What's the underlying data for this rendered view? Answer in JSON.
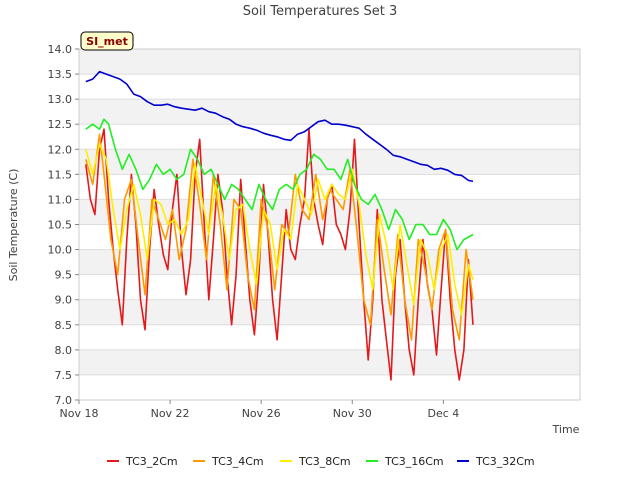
{
  "chart_data": {
    "type": "line",
    "title": "Soil Temperatures Set 3",
    "xlabel": "Time",
    "ylabel": "Soil Temperature (C)",
    "badge": "SI_met",
    "ylim": [
      7.0,
      14.0
    ],
    "xlim": [
      0,
      22
    ],
    "yticks": [
      "7.0",
      "7.5",
      "8.0",
      "8.5",
      "9.0",
      "9.5",
      "10.0",
      "10.5",
      "11.0",
      "11.5",
      "12.0",
      "12.5",
      "13.0",
      "13.5",
      "14.0"
    ],
    "xticks": [
      {
        "x": 0,
        "label": "Nov 18"
      },
      {
        "x": 4,
        "label": "Nov 22"
      },
      {
        "x": 8,
        "label": "Nov 26"
      },
      {
        "x": 12,
        "label": "Nov 30"
      },
      {
        "x": 16,
        "label": "Dec 4"
      }
    ],
    "grid": true,
    "legend_position": "bottom",
    "series": [
      {
        "name": "TC3_2Cm",
        "color": "#e31a1c",
        "x": [
          0.3,
          0.5,
          0.7,
          0.9,
          1.1,
          1.3,
          1.5,
          1.7,
          1.9,
          2.1,
          2.3,
          2.5,
          2.7,
          2.9,
          3.1,
          3.3,
          3.5,
          3.7,
          3.9,
          4.1,
          4.3,
          4.5,
          4.7,
          4.9,
          5.1,
          5.3,
          5.5,
          5.7,
          5.9,
          6.1,
          6.3,
          6.5,
          6.7,
          6.9,
          7.1,
          7.3,
          7.5,
          7.7,
          7.9,
          8.1,
          8.3,
          8.5,
          8.7,
          8.9,
          9.1,
          9.3,
          9.5,
          9.7,
          9.9,
          10.1,
          10.3,
          10.5,
          10.7,
          10.9,
          11.1,
          11.3,
          11.5,
          11.7,
          11.9,
          12.1,
          12.3,
          12.5,
          12.7,
          12.9,
          13.1,
          13.3,
          13.5,
          13.7,
          13.9,
          14.1,
          14.3,
          14.5,
          14.7,
          14.9,
          15.1,
          15.3,
          15.5,
          15.7,
          15.9,
          16.1,
          16.3,
          16.5,
          16.7,
          16.9,
          17.1,
          17.3
        ],
        "y": [
          11.7,
          11.0,
          10.7,
          12.0,
          12.4,
          11.0,
          10.0,
          9.2,
          8.5,
          10.2,
          11.5,
          10.5,
          9.0,
          8.4,
          10.0,
          11.2,
          10.5,
          9.9,
          9.6,
          10.8,
          11.5,
          10.0,
          9.1,
          9.8,
          11.5,
          12.2,
          10.5,
          9.0,
          10.2,
          11.5,
          10.8,
          9.5,
          8.5,
          9.5,
          11.4,
          10.2,
          9.0,
          8.3,
          9.5,
          11.3,
          10.3,
          9.0,
          8.2,
          9.5,
          10.8,
          10.0,
          9.8,
          10.5,
          11.0,
          12.4,
          11.0,
          10.5,
          10.1,
          11.0,
          11.3,
          10.5,
          10.3,
          10.0,
          10.8,
          12.2,
          10.5,
          9.0,
          7.8,
          9.0,
          10.8,
          9.0,
          8.2,
          7.4,
          9.5,
          10.2,
          9.0,
          8.0,
          7.5,
          9.0,
          10.2,
          9.3,
          8.8,
          7.9,
          9.2,
          10.4,
          9.0,
          8.0,
          7.4,
          8.0,
          9.8,
          8.5
        ]
      },
      {
        "name": "TC3_4Cm",
        "color": "#ff9900",
        "x": [
          0.3,
          0.6,
          0.9,
          1.1,
          1.4,
          1.7,
          2.0,
          2.3,
          2.6,
          2.9,
          3.2,
          3.5,
          3.8,
          4.1,
          4.4,
          4.7,
          5.0,
          5.3,
          5.6,
          5.9,
          6.2,
          6.5,
          6.8,
          7.1,
          7.4,
          7.7,
          8.0,
          8.3,
          8.6,
          8.9,
          9.2,
          9.5,
          9.8,
          10.1,
          10.4,
          10.7,
          11.0,
          11.3,
          11.6,
          11.9,
          12.2,
          12.5,
          12.8,
          13.1,
          13.4,
          13.7,
          14.0,
          14.3,
          14.6,
          14.9,
          15.2,
          15.5,
          15.8,
          16.1,
          16.4,
          16.7,
          17.0,
          17.3
        ],
        "y": [
          11.8,
          11.3,
          12.3,
          11.5,
          10.2,
          9.5,
          11.0,
          11.4,
          10.2,
          9.1,
          11.0,
          10.6,
          10.2,
          10.8,
          9.8,
          10.4,
          11.8,
          10.9,
          9.8,
          11.5,
          10.5,
          9.2,
          11.0,
          10.8,
          9.5,
          8.8,
          11.0,
          10.4,
          9.2,
          10.5,
          10.3,
          11.5,
          10.8,
          10.6,
          11.5,
          10.6,
          11.2,
          11.0,
          10.8,
          11.6,
          10.4,
          9.0,
          8.5,
          10.6,
          9.6,
          8.7,
          10.3,
          9.0,
          8.2,
          10.2,
          9.6,
          8.8,
          10.0,
          10.4,
          8.8,
          8.2,
          10.0,
          9.0
        ]
      },
      {
        "name": "TC3_8Cm",
        "color": "#ffee00",
        "x": [
          0.3,
          0.6,
          0.9,
          1.2,
          1.5,
          1.8,
          2.1,
          2.4,
          2.7,
          3.0,
          3.3,
          3.6,
          3.9,
          4.2,
          4.5,
          4.8,
          5.1,
          5.4,
          5.7,
          6.0,
          6.3,
          6.6,
          6.9,
          7.2,
          7.5,
          7.8,
          8.1,
          8.4,
          8.7,
          9.0,
          9.3,
          9.6,
          9.9,
          10.2,
          10.5,
          10.8,
          11.1,
          11.4,
          11.7,
          12.0,
          12.3,
          12.6,
          12.9,
          13.2,
          13.5,
          13.8,
          14.1,
          14.4,
          14.7,
          15.0,
          15.3,
          15.6,
          15.9,
          16.2,
          16.5,
          16.8,
          17.1,
          17.3
        ],
        "y": [
          12.0,
          11.5,
          12.1,
          11.8,
          10.8,
          10.0,
          10.8,
          11.3,
          10.7,
          9.8,
          11.0,
          10.9,
          10.5,
          10.6,
          10.3,
          10.6,
          11.7,
          11.0,
          10.3,
          11.3,
          10.7,
          9.8,
          10.8,
          10.9,
          10.0,
          9.3,
          10.8,
          10.5,
          9.6,
          10.4,
          10.2,
          11.3,
          11.0,
          10.7,
          11.4,
          11.0,
          11.3,
          11.1,
          11.0,
          11.6,
          10.9,
          9.9,
          9.2,
          10.7,
          10.1,
          9.2,
          10.5,
          9.7,
          8.9,
          10.2,
          9.9,
          9.2,
          10.0,
          10.3,
          9.3,
          8.7,
          9.7,
          9.4
        ]
      },
      {
        "name": "TC3_16Cm",
        "color": "#22ee22",
        "x": [
          0.3,
          0.6,
          0.9,
          1.1,
          1.3,
          1.6,
          1.9,
          2.2,
          2.5,
          2.8,
          3.1,
          3.4,
          3.7,
          4.0,
          4.3,
          4.6,
          4.9,
          5.2,
          5.5,
          5.8,
          6.1,
          6.4,
          6.7,
          7.0,
          7.3,
          7.6,
          7.9,
          8.2,
          8.5,
          8.8,
          9.1,
          9.4,
          9.7,
          10.0,
          10.3,
          10.6,
          10.9,
          11.2,
          11.5,
          11.8,
          12.1,
          12.4,
          12.7,
          13.0,
          13.3,
          13.6,
          13.9,
          14.2,
          14.5,
          14.8,
          15.1,
          15.4,
          15.7,
          16.0,
          16.3,
          16.6,
          16.9,
          17.3
        ],
        "y": [
          12.4,
          12.5,
          12.4,
          12.6,
          12.5,
          12.0,
          11.6,
          11.9,
          11.6,
          11.2,
          11.4,
          11.7,
          11.5,
          11.6,
          11.4,
          11.5,
          12.0,
          11.8,
          11.5,
          11.6,
          11.3,
          11.0,
          11.3,
          11.2,
          11.0,
          10.8,
          11.3,
          11.0,
          10.8,
          11.2,
          11.3,
          11.2,
          11.5,
          11.6,
          11.9,
          11.8,
          11.6,
          11.6,
          11.4,
          11.8,
          11.3,
          11.0,
          10.9,
          11.1,
          10.8,
          10.4,
          10.8,
          10.6,
          10.2,
          10.5,
          10.5,
          10.3,
          10.3,
          10.6,
          10.4,
          10.0,
          10.2,
          10.3
        ]
      },
      {
        "name": "TC3_32Cm",
        "color": "#0000cc",
        "x": [
          0.3,
          0.6,
          0.9,
          1.2,
          1.5,
          1.8,
          2.1,
          2.4,
          2.7,
          3.0,
          3.3,
          3.6,
          3.9,
          4.2,
          4.5,
          4.8,
          5.1,
          5.4,
          5.7,
          6.0,
          6.3,
          6.6,
          6.9,
          7.2,
          7.5,
          7.8,
          8.1,
          8.4,
          8.7,
          9.0,
          9.3,
          9.6,
          9.9,
          10.2,
          10.5,
          10.8,
          11.1,
          11.4,
          11.7,
          12.0,
          12.3,
          12.6,
          12.9,
          13.2,
          13.5,
          13.8,
          14.1,
          14.4,
          14.7,
          15.0,
          15.3,
          15.6,
          15.9,
          16.2,
          16.5,
          16.8,
          17.1,
          17.3
        ],
        "y": [
          13.35,
          13.4,
          13.55,
          13.5,
          13.45,
          13.4,
          13.3,
          13.1,
          13.05,
          12.95,
          12.88,
          12.88,
          12.9,
          12.85,
          12.82,
          12.8,
          12.78,
          12.82,
          12.75,
          12.72,
          12.65,
          12.6,
          12.5,
          12.45,
          12.42,
          12.38,
          12.32,
          12.28,
          12.25,
          12.2,
          12.18,
          12.3,
          12.35,
          12.45,
          12.55,
          12.58,
          12.5,
          12.5,
          12.48,
          12.45,
          12.42,
          12.3,
          12.2,
          12.1,
          12.0,
          11.88,
          11.85,
          11.8,
          11.75,
          11.7,
          11.68,
          11.6,
          11.62,
          11.58,
          11.5,
          11.48,
          11.38,
          11.36
        ]
      }
    ]
  }
}
